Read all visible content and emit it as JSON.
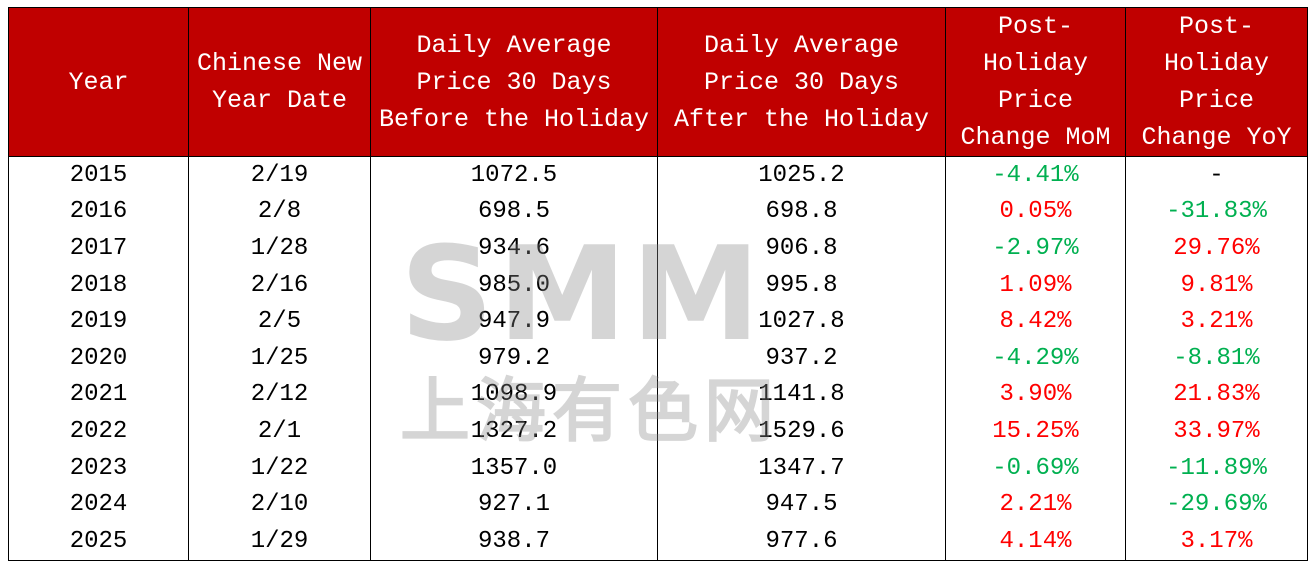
{
  "table": {
    "header": [
      "Year",
      "Chinese New Year Date",
      "Daily Average Price 30 Days Before the Holiday",
      "Daily Average Price 30 Days After the Holiday",
      "Post-Holiday Price Change MoM",
      "Post-Holiday Price Change YoY"
    ],
    "rows": [
      [
        "2015",
        "2/19",
        "1072.5",
        "1025.2",
        "-4.41%",
        "-"
      ],
      [
        "2016",
        "2/8",
        "698.5",
        "698.8",
        "0.05%",
        "-31.83%"
      ],
      [
        "2017",
        "1/28",
        "934.6",
        "906.8",
        "-2.97%",
        "29.76%"
      ],
      [
        "2018",
        "2/16",
        "985.0",
        "995.8",
        "1.09%",
        "9.81%"
      ],
      [
        "2019",
        "2/5",
        "947.9",
        "1027.8",
        "8.42%",
        "3.21%"
      ],
      [
        "2020",
        "1/25",
        "979.2",
        "937.2",
        "-4.29%",
        "-8.81%"
      ],
      [
        "2021",
        "2/12",
        "1098.9",
        "1141.8",
        "3.90%",
        "21.83%"
      ],
      [
        "2022",
        "2/1",
        "1327.2",
        "1529.6",
        "15.25%",
        "33.97%"
      ],
      [
        "2023",
        "1/22",
        "1357.0",
        "1347.7",
        "-0.69%",
        "-11.89%"
      ],
      [
        "2024",
        "2/10",
        "927.1",
        "947.5",
        "2.21%",
        "-29.69%"
      ],
      [
        "2025",
        "1/29",
        "938.7",
        "977.6",
        "4.14%",
        "3.17%"
      ]
    ]
  },
  "watermark": {
    "logo": "SMM",
    "name": "上海有色网"
  }
}
